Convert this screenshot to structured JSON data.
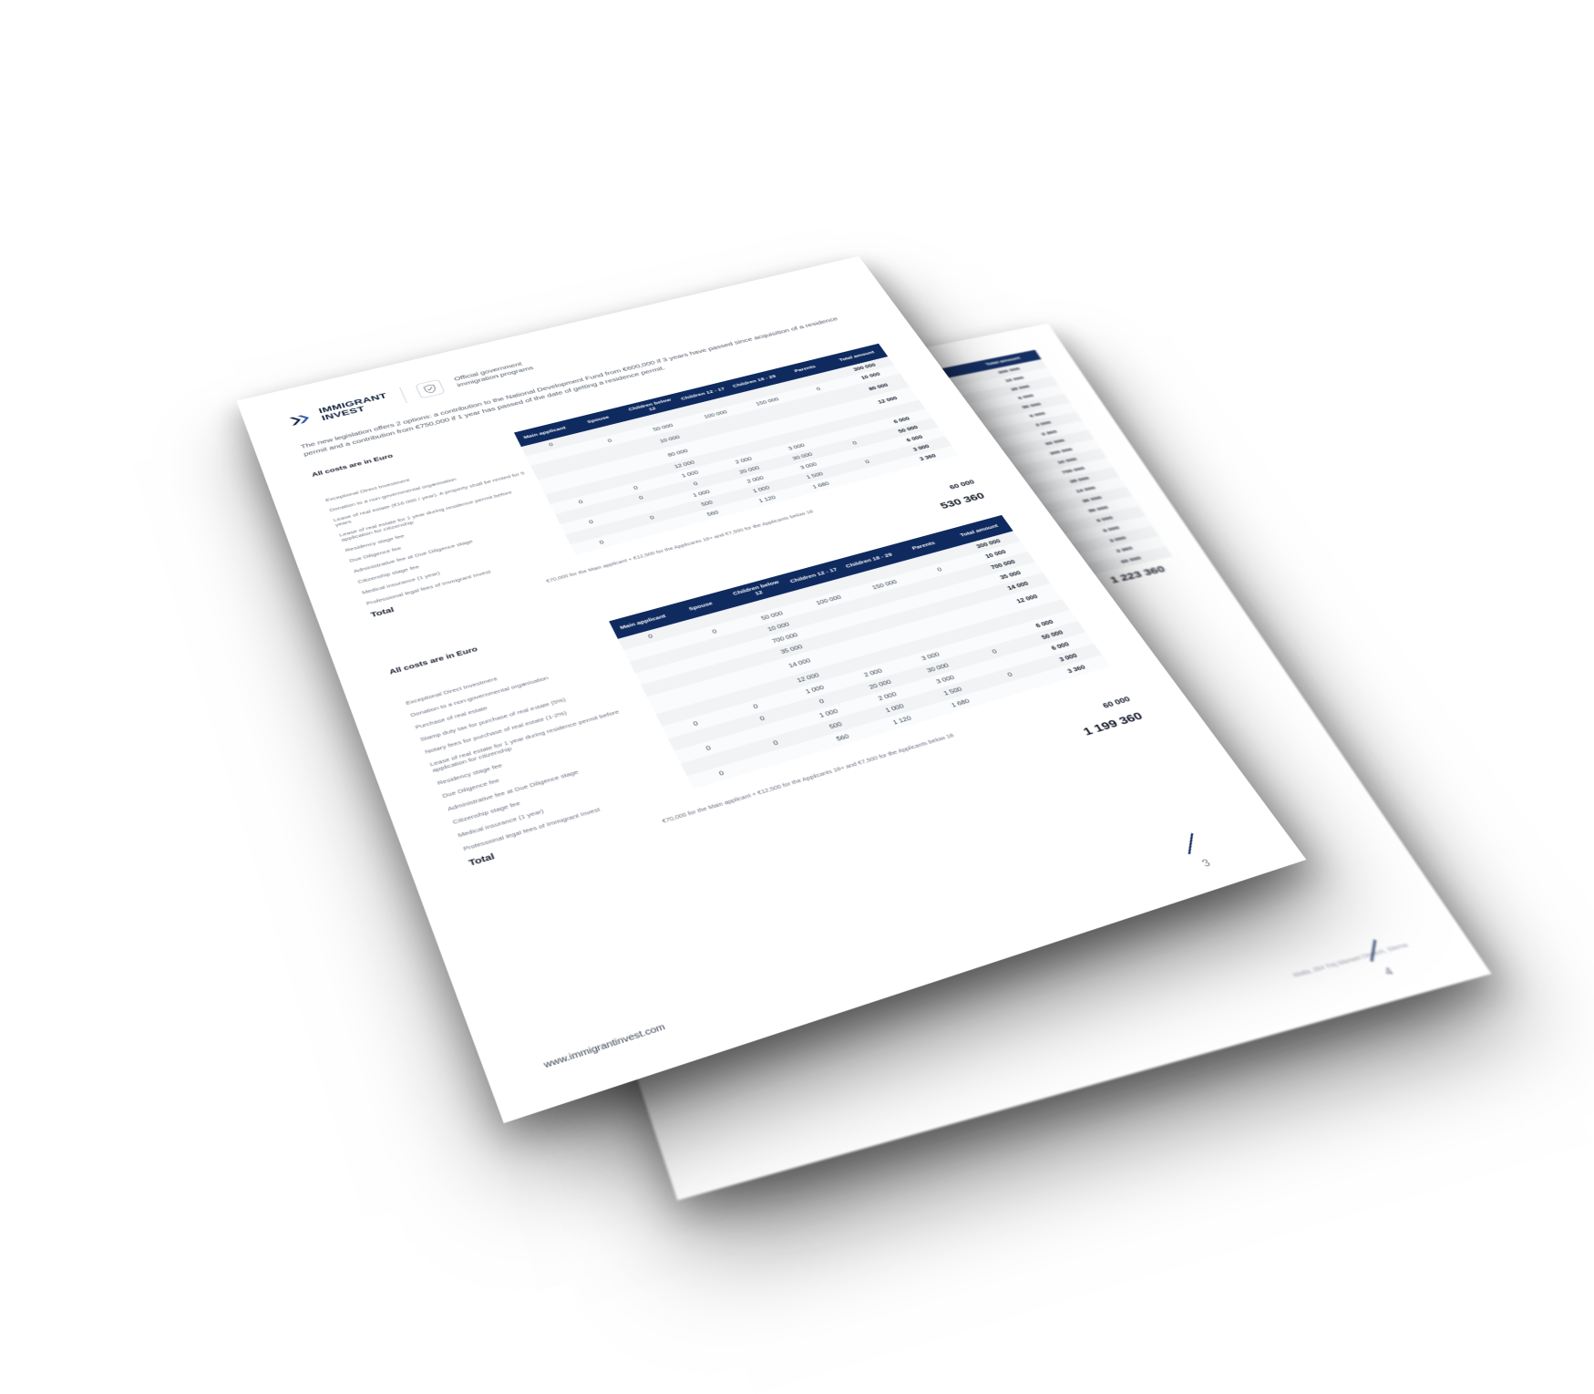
{
  "brand": {
    "line1": "IMMIGRANT",
    "line2": "INVEST"
  },
  "header_sub": {
    "line1": "Official government",
    "line2": "immigration programs"
  },
  "intro": "The new legislation offers 2 options: a contribution to the National Development Fund from €600,000 if 3 years have passed since acquisition of a residence permit and a contribution from €750,000 if 1 year has passed of the date of getting a residence permit.",
  "section_title": "All costs are in Euro",
  "footnote": "€70,000 for the Main applicant + €12,500 for the Applicants 18+ and €7,500 for the Applicants below 18",
  "footer_url": "www.immigrantinvest.com",
  "page_front": "3",
  "page_back": "4",
  "address": "Malta, 264 Triq Manwel\nDimech, Sliema",
  "colors": {
    "brand_navy": "#0a1d3a",
    "table_header": "#0f2a5f",
    "row_odd": "#f2f3f5",
    "row_even": "#fafbfc",
    "text_body": "#4b5563",
    "text_muted": "#6b7280",
    "text_strong": "#111827",
    "divider": "#d0d4da",
    "page_bg": "#ffffff"
  },
  "columns": [
    "Main applicant",
    "Spouse",
    "Children below 12",
    "Children 12 - 17",
    "Children 18 - 29",
    "Parents",
    "Total amount"
  ],
  "table1": {
    "rows": [
      {
        "label": "Exceptional Direct Investment",
        "v": [
          "0",
          "",
          "",
          "",
          "",
          "",
          "300 000"
        ]
      },
      {
        "label": "Donation to a non-governmental organisation",
        "v": [
          "",
          "0",
          "50 000",
          "100 000",
          "150 000",
          "0",
          "10 000"
        ]
      },
      {
        "label": "Lease of real estate (€16 000 / year). A property shall be rented for 5 years",
        "v": [
          "",
          "",
          "10 000",
          "",
          "",
          "",
          "80 000"
        ]
      },
      {
        "label": "Lease of real estate for 1 year during residence permit before application for citizenship",
        "v": [
          "",
          "",
          "80 000",
          "",
          "",
          "",
          "12 000"
        ]
      },
      {
        "label": "Residency stage fee",
        "v": [
          "",
          "",
          "12 000",
          "",
          "",
          "",
          ""
        ]
      },
      {
        "label": "Due Diligence fee",
        "v": [
          "0",
          "0",
          "1 000",
          "2 000",
          "3 000",
          "",
          "6 000"
        ]
      },
      {
        "label": "Administrative fee at Due Diligence stage",
        "v": [
          "",
          "0",
          "0",
          "20 000",
          "30 000",
          "0",
          "50 000"
        ]
      },
      {
        "label": "Citizenship stage fee",
        "v": [
          "0",
          "",
          "1 000",
          "2 000",
          "3 000",
          "",
          "6 000"
        ]
      },
      {
        "label": "Medical insurance (1 year)",
        "v": [
          "",
          "0",
          "500",
          "1 000",
          "1 500",
          "0",
          "3 000"
        ]
      },
      {
        "label": "Professional legal fees of Immigrant Invest",
        "v": [
          "0",
          "",
          "560",
          "1 120",
          "1 680",
          "",
          "3 360"
        ]
      }
    ],
    "subtotal": "60 000",
    "grand": "530 360"
  },
  "table2": {
    "rows": [
      {
        "label": "Exceptional Direct Investment",
        "v": [
          "0",
          "",
          "",
          "",
          "",
          "",
          "300 000"
        ]
      },
      {
        "label": "Donation to a non-governmental organisation",
        "v": [
          "",
          "0",
          "50 000",
          "100 000",
          "150 000",
          "0",
          "10 000"
        ]
      },
      {
        "label": "Purchase of real estate",
        "v": [
          "",
          "",
          "10 000",
          "",
          "",
          "",
          "700 000"
        ]
      },
      {
        "label": "Stamp duty tax for purchase of real estate (5%)",
        "v": [
          "",
          "",
          "700 000",
          "",
          "",
          "",
          "35 000"
        ]
      },
      {
        "label": "Notary fees for purchase of real estate (1-2%)",
        "v": [
          "",
          "",
          "35 000",
          "",
          "",
          "",
          "14 000"
        ]
      },
      {
        "label": "Lease of real estate for 1 year during residence permit before application for citizenship",
        "v": [
          "",
          "",
          "14 000",
          "",
          "",
          "",
          "12 000"
        ]
      },
      {
        "label": "Residency stage fee",
        "v": [
          "",
          "",
          "12 000",
          "",
          "",
          "",
          ""
        ]
      },
      {
        "label": "Due Diligence fee",
        "v": [
          "0",
          "0",
          "1 000",
          "2 000",
          "3 000",
          "",
          "6 000"
        ]
      },
      {
        "label": "Administrative fee at Due Diligence stage",
        "v": [
          "",
          "0",
          "0",
          "20 000",
          "30 000",
          "0",
          "50 000"
        ]
      },
      {
        "label": "Citizenship stage fee",
        "v": [
          "0",
          "",
          "1 000",
          "2 000",
          "3 000",
          "",
          "6 000"
        ]
      },
      {
        "label": "Medical insurance (1 year)",
        "v": [
          "",
          "0",
          "500",
          "1 000",
          "1 500",
          "0",
          "3 000"
        ]
      },
      {
        "label": "Professional legal fees of Immigrant Invest",
        "v": [
          "0",
          "",
          "560",
          "1 120",
          "1 680",
          "",
          "3 360"
        ]
      }
    ],
    "subtotal": "60 000",
    "grand": "1 199 360"
  },
  "back_partial": {
    "cols": [
      "Children 18 - 29",
      "Parents",
      "Total amount"
    ],
    "rows": [
      [
        "150 000",
        "",
        "300 000"
      ],
      [
        "",
        "0",
        "10 000"
      ],
      [
        "",
        "",
        "35 000"
      ],
      [
        "",
        "",
        "6 000"
      ],
      [
        "",
        "0",
        "50 000"
      ],
      [
        "3 000",
        "",
        "6 000"
      ],
      [
        "",
        "and €7,500",
        "3 000"
      ],
      [
        "",
        "",
        "3 360"
      ],
      [
        "",
        "",
        "60 000"
      ],
      [
        "",
        "",
        "300 000"
      ],
      [
        "",
        "",
        "10 000"
      ],
      [
        "",
        "",
        "700 000"
      ],
      [
        "",
        "",
        "35 000"
      ],
      [
        "",
        "",
        "14 000"
      ],
      [
        "",
        "",
        "36 000"
      ],
      [
        "",
        "",
        "50 000"
      ],
      [
        "",
        "",
        "6 000"
      ],
      [
        "",
        "",
        "6 000"
      ],
      [
        "",
        "",
        "3 000"
      ],
      [
        "",
        "",
        "3 360"
      ],
      [
        "",
        "",
        "60 000"
      ]
    ],
    "grand": "1 223 360"
  }
}
